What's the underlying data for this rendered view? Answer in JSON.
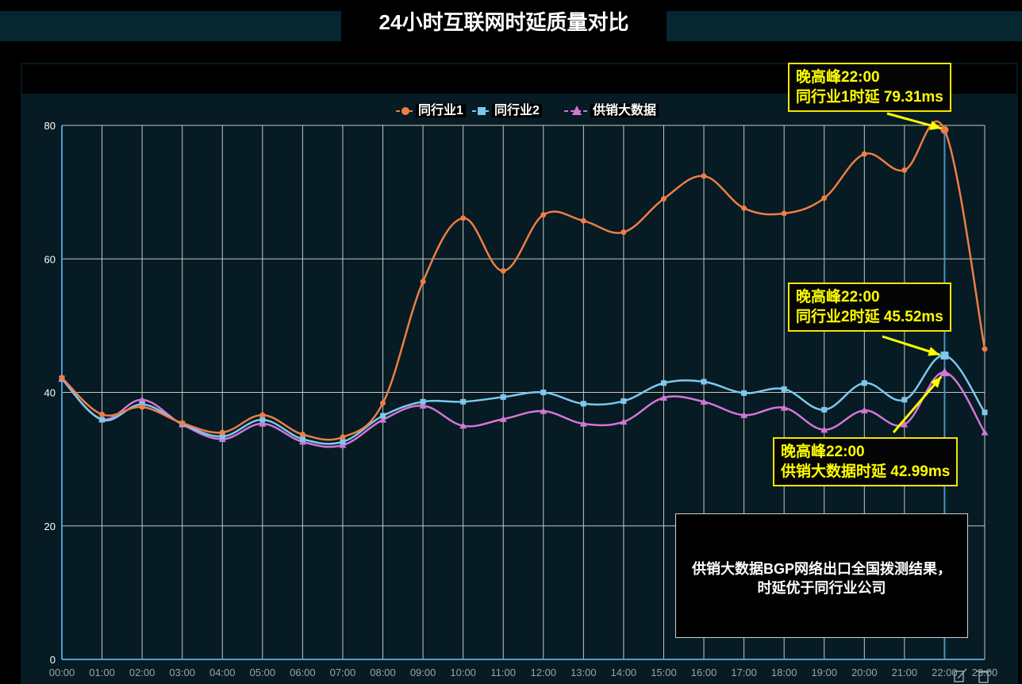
{
  "title": "24小时互联网时延质量对比",
  "legend": {
    "s1": "同行业1",
    "s2": "同行业2",
    "s3": "供销大数据"
  },
  "callouts": {
    "c1_line1": "晚高峰22:00",
    "c1_line2": "同行业1时延 79.31ms",
    "c2_line1": "晚高峰22:00",
    "c2_line2": "同行业2时延 45.52ms",
    "c3_line1": "晚高峰22:00",
    "c3_line2": "供销大数据时延 42.99ms"
  },
  "note": {
    "line1": "供销大数据BGP网络出口全国拨测结果，",
    "line2": "时延优于同行业公司"
  },
  "colors": {
    "s1": "#ef7d46",
    "s2": "#7cc8ee",
    "s3": "#d476d8",
    "plot_bg": "#061b23",
    "grid": "#c8c8c8",
    "callout": "#ffff00",
    "highlight_line": "#4a90c0"
  },
  "chart_data": {
    "type": "line",
    "x": [
      "00:00",
      "01:00",
      "02:00",
      "03:00",
      "04:00",
      "05:00",
      "06:00",
      "07:00",
      "08:00",
      "09:00",
      "10:00",
      "11:00",
      "12:00",
      "13:00",
      "14:00",
      "15:00",
      "16:00",
      "17:00",
      "18:00",
      "19:00",
      "20:00",
      "21:00",
      "22:00",
      "23:00"
    ],
    "series": [
      {
        "name": "同行业1",
        "marker": "circle",
        "values": [
          42.2,
          36.7,
          37.8,
          35.4,
          34.0,
          36.6,
          33.7,
          33.3,
          38.4,
          56.6,
          66.1,
          58.2,
          66.6,
          65.7,
          64.0,
          69.0,
          72.4,
          67.6,
          66.8,
          69.1,
          75.7,
          73.3,
          79.31,
          46.5
        ]
      },
      {
        "name": "同行业2",
        "marker": "square",
        "values": [
          42.1,
          35.9,
          38.2,
          35.3,
          33.4,
          35.9,
          33.0,
          32.6,
          36.5,
          38.6,
          38.6,
          39.3,
          40.0,
          38.3,
          38.7,
          41.4,
          41.6,
          39.9,
          40.5,
          37.4,
          41.4,
          38.9,
          45.52,
          37.0
        ]
      },
      {
        "name": "供销大数据",
        "marker": "triangle",
        "values": [
          42.0,
          36.0,
          38.9,
          35.2,
          33.0,
          35.3,
          32.6,
          32.1,
          35.9,
          38.0,
          35.0,
          36.0,
          37.2,
          35.3,
          35.6,
          39.2,
          38.6,
          36.6,
          37.7,
          34.4,
          37.3,
          35.2,
          42.99,
          34.0
        ]
      }
    ],
    "ylim": [
      0,
      80
    ],
    "yticks": [
      0,
      20,
      40,
      60,
      80
    ],
    "grid": true,
    "legend_position": "top-center",
    "highlight_x": "22:00"
  }
}
